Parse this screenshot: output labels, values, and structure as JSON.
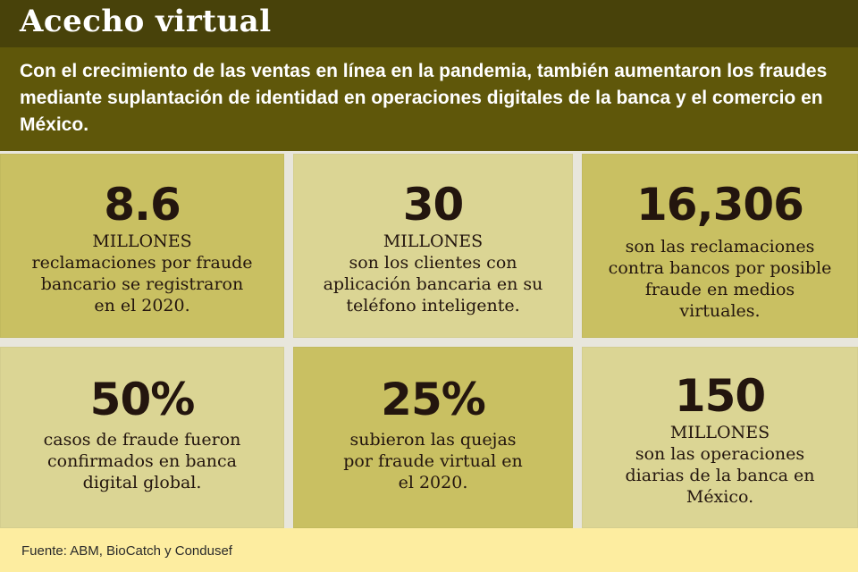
{
  "title": "Acecho virtual",
  "intro": "Con el crecimiento de las ventas en línea en la pandemia, también aumentaron los fraudes mediante suplantación de identidad en operaciones digitales de la banca y el comercio en México.",
  "stats": [
    {
      "value": "8.6",
      "unit": "MILLONES",
      "text": "reclamaciones por fraude bancario se registraron en el 2020."
    },
    {
      "value": "30",
      "unit": "MILLONES",
      "text": "son los clientes con aplicación bancaria en su teléfono inteligente."
    },
    {
      "value": "16,306",
      "unit": "",
      "text": "son las reclamaciones contra bancos por posible fraude en medios virtuales."
    },
    {
      "value": "50%",
      "unit": "",
      "text": "casos de fraude fueron confirmados en banca digital global."
    },
    {
      "value": "25%",
      "unit": "",
      "text": "subieron las quejas por fraude virtual en el 2020."
    },
    {
      "value": "150",
      "unit": "MILLONES",
      "text": "son las operaciones diarias de la banca en México."
    }
  ],
  "source": "Fuente: ABM, BioCatch y Condusef",
  "colors": {
    "header": "#48420a",
    "intro": "#5f570a",
    "cell_dark": "#c9c062",
    "cell_light": "#dbd594",
    "footer": "#fdeda0"
  }
}
